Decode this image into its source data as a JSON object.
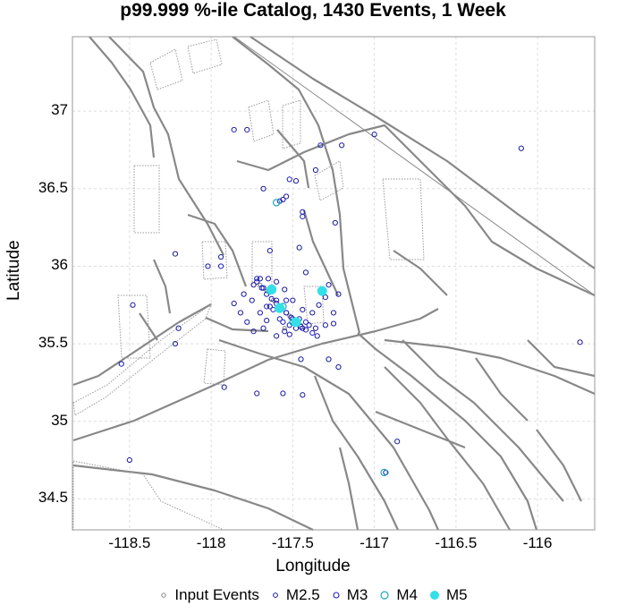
{
  "chart_data": {
    "type": "scatter",
    "title": "p99.999 %-ile Catalog, 1430 Events, 1 Week",
    "xlabel": "Longitude",
    "ylabel": "Latitude",
    "xlim": [
      -118.85,
      -115.65
    ],
    "ylim": [
      34.3,
      37.48
    ],
    "xticks": [
      "-118.5",
      "-118",
      "-117.5",
      "-117",
      "-116.5",
      "-116"
    ],
    "xtick_values": [
      -118.5,
      -118,
      -117.5,
      -117,
      -116.5,
      -116
    ],
    "yticks": [
      "34.5",
      "35",
      "35.5",
      "36",
      "36.5",
      "37"
    ],
    "ytick_values": [
      34.5,
      35,
      35.5,
      36,
      36.5,
      37
    ],
    "grid": true,
    "legend_position": "bottom",
    "series": [
      {
        "name": "Input Events",
        "color": "#888888",
        "marker": "open-circle-small",
        "points": [
          [
            -117.62,
            35.78
          ],
          [
            -117.58,
            35.72
          ],
          [
            -117.52,
            35.68
          ],
          [
            -117.48,
            35.64
          ],
          [
            -117.55,
            35.6
          ],
          [
            -117.66,
            35.84
          ],
          [
            -117.7,
            35.88
          ],
          [
            -117.45,
            35.62
          ]
        ]
      },
      {
        "name": "M2.5",
        "color": "#1a1aa0",
        "marker": "open-circle",
        "points": [
          [
            -117.72,
            35.9
          ],
          [
            -117.69,
            35.86
          ],
          [
            -117.66,
            35.82
          ],
          [
            -117.63,
            35.79
          ],
          [
            -117.6,
            35.76
          ],
          [
            -117.57,
            35.73
          ],
          [
            -117.54,
            35.7
          ],
          [
            -117.51,
            35.67
          ],
          [
            -117.48,
            35.64
          ],
          [
            -117.45,
            35.61
          ],
          [
            -117.42,
            35.59
          ],
          [
            -117.74,
            35.88
          ],
          [
            -117.7,
            35.92
          ],
          [
            -117.64,
            35.74
          ],
          [
            -117.58,
            35.66
          ],
          [
            -117.52,
            35.62
          ],
          [
            -117.46,
            35.66
          ],
          [
            -117.4,
            35.62
          ],
          [
            -117.36,
            35.6
          ],
          [
            -117.3,
            35.62
          ],
          [
            -117.25,
            35.63
          ],
          [
            -117.7,
            35.7
          ],
          [
            -117.66,
            35.65
          ],
          [
            -117.75,
            35.78
          ],
          [
            -117.8,
            35.82
          ],
          [
            -117.86,
            35.76
          ],
          [
            -117.82,
            35.7
          ],
          [
            -117.78,
            35.64
          ],
          [
            -117.74,
            35.58
          ],
          [
            -117.6,
            35.55
          ],
          [
            -117.55,
            35.58
          ],
          [
            -117.65,
            35.92
          ],
          [
            -117.6,
            35.9
          ],
          [
            -117.55,
            35.85
          ],
          [
            -117.5,
            35.78
          ],
          [
            -117.44,
            35.72
          ],
          [
            -117.38,
            35.7
          ],
          [
            -117.34,
            35.75
          ],
          [
            -117.3,
            35.8
          ],
          [
            -117.28,
            35.88
          ],
          [
            -117.22,
            35.82
          ],
          [
            -117.25,
            35.7
          ],
          [
            -117.35,
            35.55
          ],
          [
            -117.52,
            35.56
          ],
          [
            -117.68,
            35.6
          ],
          [
            -118.2,
            35.6
          ],
          [
            -118.22,
            35.5
          ],
          [
            -118.48,
            35.75
          ],
          [
            -118.22,
            36.08
          ],
          [
            -118.02,
            36.0
          ],
          [
            -117.94,
            36.06
          ],
          [
            -117.68,
            36.5
          ],
          [
            -117.56,
            36.43
          ],
          [
            -117.48,
            36.55
          ],
          [
            -117.44,
            36.35
          ],
          [
            -117.36,
            36.62
          ],
          [
            -117.2,
            36.78
          ],
          [
            -117.0,
            36.85
          ],
          [
            -116.1,
            36.76
          ],
          [
            -117.24,
            36.28
          ],
          [
            -117.28,
            35.4
          ],
          [
            -117.22,
            35.35
          ],
          [
            -117.45,
            35.4
          ],
          [
            -117.92,
            35.22
          ],
          [
            -117.72,
            35.18
          ],
          [
            -117.56,
            35.18
          ],
          [
            -117.44,
            35.17
          ],
          [
            -116.86,
            34.87
          ],
          [
            -116.93,
            34.67
          ],
          [
            -118.5,
            34.75
          ],
          [
            -118.55,
            35.37
          ],
          [
            -115.74,
            35.51
          ],
          [
            -117.78,
            36.88
          ],
          [
            -117.54,
            36.45
          ],
          [
            -117.64,
            36.1
          ],
          [
            -117.46,
            36.12
          ],
          [
            -117.42,
            35.96
          ]
        ]
      },
      {
        "name": "M3",
        "color": "#2020c0",
        "marker": "open-circle",
        "points": [
          [
            -117.68,
            35.86
          ],
          [
            -117.6,
            35.78
          ],
          [
            -117.54,
            35.7
          ],
          [
            -117.5,
            35.66
          ],
          [
            -117.44,
            35.6
          ],
          [
            -117.72,
            35.92
          ],
          [
            -117.62,
            35.72
          ],
          [
            -117.56,
            35.64
          ],
          [
            -117.48,
            35.6
          ],
          [
            -117.42,
            35.64
          ],
          [
            -117.94,
            36.0
          ],
          [
            -117.58,
            36.42
          ],
          [
            -117.52,
            36.56
          ],
          [
            -117.44,
            36.32
          ],
          [
            -117.33,
            36.78
          ],
          [
            -117.86,
            36.88
          ],
          [
            -117.54,
            35.78
          ],
          [
            -117.66,
            35.74
          ],
          [
            -117.38,
            35.57
          ]
        ]
      },
      {
        "name": "M4",
        "color": "#1fa6c0",
        "marker": "open-circle-large",
        "points": [
          [
            -117.64,
            35.84
          ],
          [
            -117.56,
            35.74
          ],
          [
            -116.94,
            34.67
          ],
          [
            -117.5,
            35.64
          ],
          [
            -117.6,
            36.41
          ]
        ]
      },
      {
        "name": "M5",
        "color": "#33e0e8",
        "marker": "filled-circle",
        "points": [
          [
            -117.63,
            35.85
          ],
          [
            -117.58,
            35.73
          ],
          [
            -117.32,
            35.84
          ],
          [
            -117.48,
            35.64
          ]
        ]
      }
    ]
  },
  "legend": {
    "items": [
      "Input Events",
      "M2.5",
      "M3",
      "M4",
      "M5"
    ]
  }
}
